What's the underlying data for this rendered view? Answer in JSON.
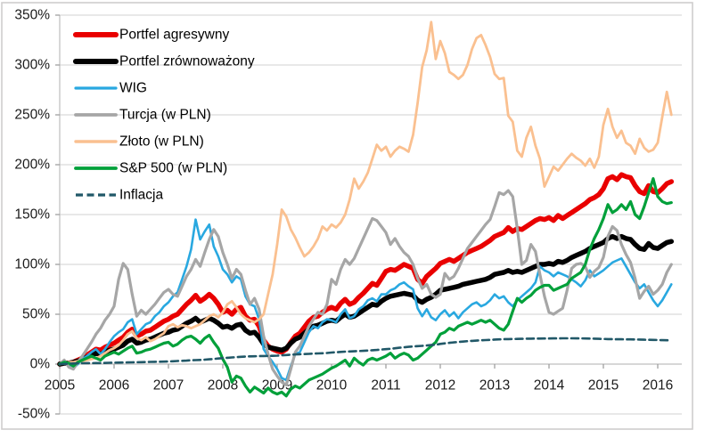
{
  "chart_data": {
    "type": "line",
    "title": "",
    "x_axis": {
      "labels": [
        "2005",
        "2006",
        "2007",
        "2008",
        "2009",
        "2010",
        "2011",
        "2012",
        "2013",
        "2014",
        "2015",
        "2016"
      ],
      "start_year": 2005,
      "points_per_year": 12,
      "note": "monthly values, Jan 2005 - Apr 2016"
    },
    "y_axis": {
      "tick_labels": [
        "350%",
        "300%",
        "250%",
        "200%",
        "150%",
        "100%",
        "50%",
        "0%",
        "-50%"
      ],
      "min": -50,
      "max": 350,
      "step": 50,
      "unit": "%"
    },
    "grid": true,
    "legend_position": "top-left-inside",
    "series": [
      {
        "name": "Portfel agresywny",
        "color": "#E90000",
        "width": 5.5,
        "dash": null,
        "values": [
          0,
          1,
          1,
          2,
          4,
          6,
          9,
          12,
          15,
          14,
          17,
          19,
          21,
          24,
          27,
          32,
          35,
          28,
          30,
          33,
          34,
          37,
          40,
          43,
          45,
          48,
          50,
          55,
          60,
          64,
          69,
          63,
          66,
          70,
          66,
          60,
          52,
          54,
          50,
          55,
          57,
          48,
          44,
          45,
          38,
          24,
          18,
          15,
          13,
          12,
          15,
          22,
          28,
          31,
          37,
          43,
          47,
          48,
          52,
          55,
          57,
          55,
          61,
          65,
          60,
          62,
          67,
          71,
          76,
          81,
          79,
          86,
          93,
          95,
          94,
          97,
          100,
          98,
          96,
          85,
          81,
          88,
          92,
          96,
          101,
          103,
          105,
          103,
          106,
          109,
          112,
          114,
          116,
          118,
          121,
          124,
          128,
          130,
          132,
          137,
          133,
          136,
          135,
          138,
          141,
          144,
          146,
          145,
          147,
          144,
          149,
          146,
          149,
          152,
          155,
          158,
          161,
          165,
          167,
          170,
          176,
          186,
          188,
          185,
          190,
          188,
          187,
          179,
          173,
          171,
          179,
          173,
          172,
          176,
          181,
          183
        ]
      },
      {
        "name": "Portfel zrównoważony",
        "color": "#000000",
        "width": 5.5,
        "dash": null,
        "values": [
          0,
          1,
          1,
          2,
          3,
          5,
          7,
          9,
          11,
          10,
          12,
          14,
          15,
          17,
          19,
          23,
          25,
          21,
          22,
          24,
          25,
          27,
          29,
          31,
          32,
          34,
          35,
          38,
          41,
          43,
          46,
          42,
          44,
          46,
          44,
          41,
          37,
          38,
          36,
          39,
          40,
          34,
          31,
          32,
          27,
          20,
          17,
          16,
          15,
          14,
          16,
          21,
          25,
          27,
          31,
          35,
          38,
          39,
          41,
          43,
          44,
          43,
          47,
          50,
          47,
          48,
          51,
          54,
          57,
          60,
          59,
          63,
          66,
          68,
          69,
          70,
          71,
          70,
          69,
          64,
          62,
          65,
          67,
          70,
          74,
          75,
          76,
          77,
          78,
          80,
          81,
          82,
          83,
          84,
          85,
          87,
          90,
          91,
          92,
          94,
          92,
          93,
          92,
          94,
          96,
          98,
          100,
          100,
          101,
          100,
          103,
          102,
          104,
          107,
          109,
          111,
          113,
          116,
          118,
          120,
          122,
          126,
          128,
          126,
          128,
          126,
          125,
          120,
          116,
          115,
          121,
          117,
          116,
          119,
          122,
          123
        ]
      },
      {
        "name": "WIG",
        "color": "#29A8E0",
        "width": 2.6,
        "dash": null,
        "values": [
          0,
          2,
          -2,
          -4,
          0,
          5,
          8,
          12,
          15,
          10,
          15,
          22,
          28,
          32,
          35,
          42,
          45,
          30,
          35,
          40,
          42,
          48,
          52,
          58,
          62,
          68,
          72,
          85,
          98,
          115,
          145,
          125,
          133,
          140,
          118,
          108,
          95,
          90,
          82,
          88,
          85,
          68,
          60,
          58,
          45,
          15,
          8,
          2,
          -5,
          -14,
          -16,
          -2,
          10,
          12,
          22,
          32,
          38,
          36,
          42,
          45,
          44,
          42,
          50,
          55,
          46,
          48,
          55,
          58,
          64,
          66,
          63,
          70,
          70,
          74,
          76,
          80,
          82,
          78,
          75,
          56,
          48,
          55,
          47,
          44,
          50,
          54,
          48,
          52,
          46,
          52,
          56,
          60,
          62,
          58,
          60,
          64,
          70,
          66,
          68,
          62,
          58,
          64,
          68,
          72,
          76,
          82,
          98,
          94,
          92,
          88,
          92,
          90,
          88,
          85,
          82,
          78,
          84,
          94,
          88,
          91,
          94,
          98,
          102,
          104,
          106,
          98,
          90,
          82,
          76,
          80,
          72,
          64,
          58,
          64,
          72,
          80
        ]
      },
      {
        "name": "Turcja (w PLN)",
        "color": "#A6A6A6",
        "width": 3.2,
        "dash": null,
        "values": [
          0,
          4,
          -3,
          -5,
          2,
          8,
          15,
          22,
          30,
          36,
          44,
          50,
          58,
          85,
          101,
          95,
          70,
          48,
          54,
          50,
          55,
          60,
          66,
          72,
          75,
          70,
          68,
          78,
          88,
          95,
          105,
          98,
          112,
          125,
          135,
          128,
          112,
          100,
          86,
          95,
          90,
          74,
          60,
          66,
          55,
          28,
          10,
          -5,
          -12,
          -18,
          -21,
          -5,
          12,
          18,
          28,
          38,
          45,
          52,
          50,
          60,
          85,
          80,
          95,
          105,
          100,
          106,
          116,
          126,
          136,
          146,
          144,
          138,
          132,
          120,
          126,
          118,
          112,
          108,
          100,
          86,
          76,
          80,
          70,
          67,
          70,
          91,
          85,
          88,
          96,
          106,
          116,
          122,
          128,
          134,
          140,
          145,
          158,
          172,
          170,
          174,
          168,
          136,
          100,
          104,
          120,
          113,
          90,
          68,
          52,
          50,
          53,
          56,
          74,
          96,
          100,
          101,
          98,
          87,
          93,
          97,
          107,
          128,
          138,
          134,
          120,
          110,
          102,
          86,
          66,
          73,
          78,
          70,
          74,
          80,
          92,
          100
        ]
      },
      {
        "name": "Złoto (w PLN)",
        "color": "#FAC090",
        "width": 2.8,
        "dash": null,
        "values": [
          0,
          1,
          2,
          2,
          3,
          3,
          4,
          5,
          6,
          8,
          11,
          14,
          16,
          19,
          24,
          30,
          33,
          26,
          24,
          27,
          23,
          25,
          28,
          31,
          38,
          40,
          37,
          39,
          38,
          36,
          38,
          40,
          44,
          48,
          50,
          47,
          52,
          60,
          63,
          57,
          50,
          46,
          44,
          42,
          45,
          50,
          70,
          90,
          120,
          155,
          148,
          135,
          127,
          117,
          108,
          112,
          118,
          126,
          138,
          134,
          140,
          137,
          142,
          150,
          165,
          186,
          176,
          183,
          192,
          206,
          220,
          214,
          218,
          208,
          214,
          218,
          216,
          213,
          230,
          262,
          298,
          315,
          343,
          306,
          324,
          312,
          293,
          290,
          286,
          290,
          300,
          316,
          327,
          330,
          320,
          308,
          291,
          286,
          287,
          249,
          243,
          214,
          208,
          227,
          238,
          219,
          206,
          178,
          188,
          198,
          194,
          200,
          206,
          211,
          207,
          204,
          199,
          206,
          197,
          208,
          240,
          256,
          238,
          227,
          234,
          222,
          219,
          211,
          226,
          217,
          213,
          215,
          222,
          248,
          273,
          250
        ]
      },
      {
        "name": "S&P 500 (w PLN)",
        "color": "#00A03A",
        "width": 3.2,
        "dash": null,
        "values": [
          0,
          2,
          1,
          -2,
          2,
          4,
          6,
          8,
          6,
          4,
          8,
          10,
          12,
          10,
          13,
          16,
          18,
          11,
          12,
          14,
          15,
          17,
          19,
          21,
          22,
          18,
          20,
          24,
          27,
          28,
          25,
          21,
          26,
          29,
          22,
          16,
          5,
          -3,
          -18,
          -12,
          -14,
          -22,
          -28,
          -23,
          -26,
          -29,
          -24,
          -28,
          -30,
          -28,
          -32,
          -25,
          -22,
          -24,
          -20,
          -16,
          -14,
          -12,
          -10,
          -7,
          -4,
          -2,
          1,
          4,
          -2,
          6,
          2,
          -1,
          4,
          6,
          4,
          6,
          8,
          11,
          6,
          9,
          11,
          9,
          4,
          6,
          10,
          14,
          18,
          22,
          30,
          32,
          36,
          34,
          38,
          40,
          42,
          40,
          42,
          44,
          42,
          44,
          40,
          36,
          34,
          40,
          53,
          66,
          62,
          66,
          69,
          74,
          77,
          79,
          79,
          74,
          76,
          78,
          80,
          86,
          89,
          92,
          100,
          115,
          126,
          135,
          146,
          160,
          152,
          155,
          160,
          155,
          163,
          150,
          146,
          158,
          172,
          186,
          168,
          163,
          161,
          162
        ]
      },
      {
        "name": "Inflacja",
        "color": "#215868",
        "width": 2.6,
        "dash": "8 4.5",
        "values": [
          0,
          0.2,
          0.4,
          0.6,
          0.8,
          0.9,
          1,
          1,
          1.1,
          1.1,
          1.2,
          1.3,
          1.4,
          1.5,
          1.6,
          1.7,
          1.8,
          1.9,
          2,
          2.1,
          2.2,
          2.3,
          2.4,
          2.5,
          2.7,
          2.9,
          3.1,
          3.3,
          3.5,
          3.8,
          4,
          4.2,
          4.5,
          4.8,
          5.2,
          5.6,
          6,
          6.3,
          6.7,
          7,
          7.3,
          7.6,
          7.8,
          7.9,
          8,
          8.1,
          8.2,
          8.3,
          8.5,
          8.8,
          9.1,
          9.4,
          9.7,
          9.9,
          10.1,
          10.3,
          10.5,
          10.7,
          10.9,
          11.2,
          11.6,
          11.9,
          12.2,
          12.5,
          12.7,
          12.9,
          13.1,
          13.3,
          13.6,
          13.9,
          14.2,
          14.6,
          15,
          15.4,
          15.9,
          16.4,
          16.9,
          17.3,
          17.7,
          18,
          18.3,
          18.7,
          19.1,
          19.5,
          20.3,
          20.8,
          21.3,
          21.8,
          22.2,
          22.6,
          23,
          23.3,
          23.6,
          23.9,
          24.1,
          24.3,
          24.6,
          24.8,
          25,
          25.1,
          25.2,
          25.3,
          25.4,
          25.5,
          25.5,
          25.6,
          25.6,
          25.7,
          25.7,
          25.8,
          25.8,
          25.9,
          25.9,
          25.9,
          25.8,
          25.8,
          25.7,
          25.6,
          25.5,
          25.4,
          25.3,
          25.1,
          25,
          24.9,
          24.9,
          24.8,
          24.8,
          24.7,
          24.6,
          24.5,
          24.4,
          24.3,
          24.2,
          24,
          23.9,
          23.8
        ]
      }
    ]
  },
  "colors": {
    "background": "#FFFFFF",
    "gridline": "#D9D9D9",
    "axis_line": "#BFBFBF",
    "tick": "#9A9A9A",
    "chart_border": "#CFCDCD",
    "axis_text": "#1A1A1A",
    "legend_text": "#000000"
  }
}
